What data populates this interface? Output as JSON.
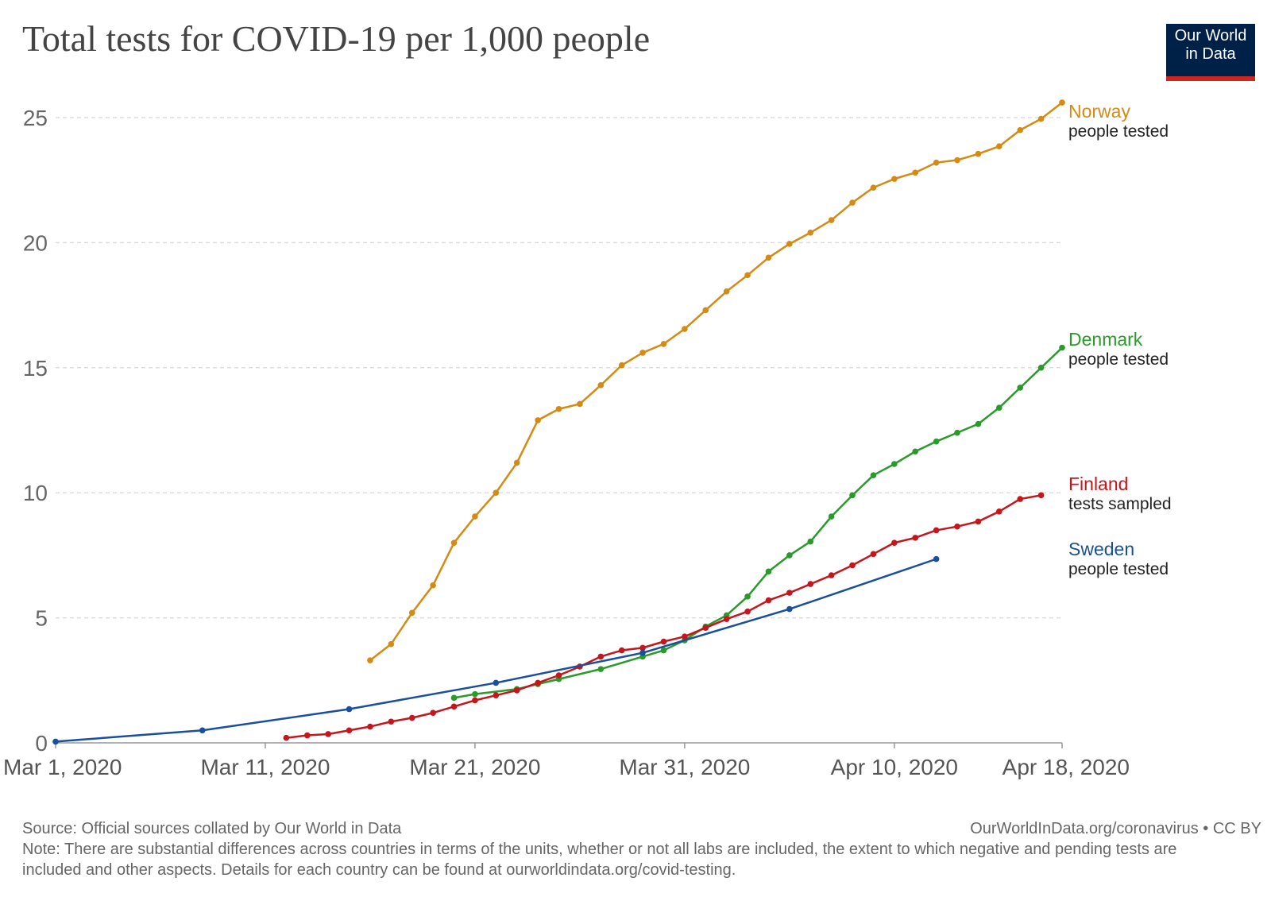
{
  "header": {
    "title": "Total tests for COVID-19 per 1,000 people",
    "logo_line1": "Our World",
    "logo_line2": "in Data"
  },
  "footer": {
    "source": "Source: Official sources collated by Our World in Data",
    "license": "OurWorldInData.org/coronavirus • CC BY",
    "note": "Note: There are substantial differences across countries in terms of the units, whether or not all labs are included, the extent to which negative and pending tests are included and other aspects. Details for each country can be found at ourworldindata.org/covid-testing."
  },
  "chart_data": {
    "type": "line",
    "title": "Total tests for COVID-19 per 1,000 people",
    "xlabel": "",
    "ylabel": "",
    "x_unit": "days",
    "xlim": [
      "2020-03-01",
      "2020-04-18"
    ],
    "ylim": [
      0,
      26
    ],
    "grid": "horizontal dashed",
    "y_ticks": [
      0,
      5,
      10,
      15,
      20,
      25
    ],
    "x_ticks": [
      {
        "date": "2020-03-01",
        "label": "Mar 1, 2020"
      },
      {
        "date": "2020-03-11",
        "label": "Mar 11, 2020"
      },
      {
        "date": "2020-03-21",
        "label": "Mar 21, 2020"
      },
      {
        "date": "2020-03-31",
        "label": "Mar 31, 2020"
      },
      {
        "date": "2020-04-10",
        "label": "Apr 10, 2020"
      },
      {
        "date": "2020-04-18",
        "label": "Apr 18, 2020"
      }
    ],
    "legend": "direct labels at right end of lines",
    "series": [
      {
        "name": "Norway",
        "unit_label": "people tested",
        "color": "#d58a14",
        "points": [
          [
            "2020-03-16",
            3.3
          ],
          [
            "2020-03-17",
            3.95
          ],
          [
            "2020-03-18",
            5.2
          ],
          [
            "2020-03-19",
            6.3
          ],
          [
            "2020-03-20",
            8.0
          ],
          [
            "2020-03-21",
            9.05
          ],
          [
            "2020-03-22",
            10.0
          ],
          [
            "2020-03-23",
            11.2
          ],
          [
            "2020-03-24",
            12.9
          ],
          [
            "2020-03-25",
            13.35
          ],
          [
            "2020-03-26",
            13.55
          ],
          [
            "2020-03-27",
            14.3
          ],
          [
            "2020-03-28",
            15.1
          ],
          [
            "2020-03-29",
            15.6
          ],
          [
            "2020-03-30",
            15.95
          ],
          [
            "2020-03-31",
            16.55
          ],
          [
            "2020-04-01",
            17.3
          ],
          [
            "2020-04-02",
            18.05
          ],
          [
            "2020-04-03",
            18.7
          ],
          [
            "2020-04-04",
            19.4
          ],
          [
            "2020-04-05",
            19.95
          ],
          [
            "2020-04-06",
            20.4
          ],
          [
            "2020-04-07",
            20.9
          ],
          [
            "2020-04-08",
            21.6
          ],
          [
            "2020-04-09",
            22.2
          ],
          [
            "2020-04-10",
            22.55
          ],
          [
            "2020-04-11",
            22.8
          ],
          [
            "2020-04-12",
            23.2
          ],
          [
            "2020-04-13",
            23.3
          ],
          [
            "2020-04-14",
            23.55
          ],
          [
            "2020-04-15",
            23.85
          ],
          [
            "2020-04-16",
            24.5
          ],
          [
            "2020-04-17",
            24.95
          ],
          [
            "2020-04-18",
            25.6
          ]
        ]
      },
      {
        "name": "Denmark",
        "unit_label": "people tested",
        "color": "#2a9a2a",
        "points": [
          [
            "2020-03-20",
            1.8
          ],
          [
            "2020-03-21",
            1.95
          ],
          [
            "2020-03-23",
            2.15
          ],
          [
            "2020-03-24",
            2.35
          ],
          [
            "2020-03-25",
            2.55
          ],
          [
            "2020-03-27",
            2.95
          ],
          [
            "2020-03-29",
            3.45
          ],
          [
            "2020-03-30",
            3.7
          ],
          [
            "2020-03-31",
            4.1
          ],
          [
            "2020-04-01",
            4.65
          ],
          [
            "2020-04-02",
            5.1
          ],
          [
            "2020-04-03",
            5.85
          ],
          [
            "2020-04-04",
            6.85
          ],
          [
            "2020-04-05",
            7.5
          ],
          [
            "2020-04-06",
            8.05
          ],
          [
            "2020-04-07",
            9.05
          ],
          [
            "2020-04-08",
            9.9
          ],
          [
            "2020-04-09",
            10.7
          ],
          [
            "2020-04-10",
            11.15
          ],
          [
            "2020-04-11",
            11.65
          ],
          [
            "2020-04-12",
            12.05
          ],
          [
            "2020-04-13",
            12.4
          ],
          [
            "2020-04-14",
            12.75
          ],
          [
            "2020-04-15",
            13.4
          ],
          [
            "2020-04-16",
            14.2
          ],
          [
            "2020-04-17",
            15.0
          ],
          [
            "2020-04-18",
            15.8
          ]
        ]
      },
      {
        "name": "Finland",
        "unit_label": "tests sampled",
        "color": "#c4161c",
        "points": [
          [
            "2020-03-12",
            0.2
          ],
          [
            "2020-03-13",
            0.3
          ],
          [
            "2020-03-14",
            0.35
          ],
          [
            "2020-03-15",
            0.5
          ],
          [
            "2020-03-16",
            0.65
          ],
          [
            "2020-03-17",
            0.85
          ],
          [
            "2020-03-18",
            1.0
          ],
          [
            "2020-03-19",
            1.2
          ],
          [
            "2020-03-20",
            1.45
          ],
          [
            "2020-03-21",
            1.7
          ],
          [
            "2020-03-22",
            1.9
          ],
          [
            "2020-03-23",
            2.1
          ],
          [
            "2020-03-24",
            2.4
          ],
          [
            "2020-03-25",
            2.7
          ],
          [
            "2020-03-26",
            3.05
          ],
          [
            "2020-03-27",
            3.45
          ],
          [
            "2020-03-28",
            3.7
          ],
          [
            "2020-03-29",
            3.8
          ],
          [
            "2020-03-30",
            4.05
          ],
          [
            "2020-03-31",
            4.25
          ],
          [
            "2020-04-01",
            4.6
          ],
          [
            "2020-04-02",
            4.95
          ],
          [
            "2020-04-03",
            5.25
          ],
          [
            "2020-04-04",
            5.7
          ],
          [
            "2020-04-05",
            6.0
          ],
          [
            "2020-04-06",
            6.35
          ],
          [
            "2020-04-07",
            6.7
          ],
          [
            "2020-04-08",
            7.1
          ],
          [
            "2020-04-09",
            7.55
          ],
          [
            "2020-04-10",
            8.0
          ],
          [
            "2020-04-11",
            8.2
          ],
          [
            "2020-04-12",
            8.5
          ],
          [
            "2020-04-13",
            8.65
          ],
          [
            "2020-04-14",
            8.85
          ],
          [
            "2020-04-15",
            9.25
          ],
          [
            "2020-04-16",
            9.75
          ],
          [
            "2020-04-17",
            9.9
          ]
        ]
      },
      {
        "name": "Sweden",
        "unit_label": "people tested",
        "color": "#1a4f9c",
        "points": [
          [
            "2020-03-01",
            0.05
          ],
          [
            "2020-03-08",
            0.5
          ],
          [
            "2020-03-15",
            1.35
          ],
          [
            "2020-03-22",
            2.4
          ],
          [
            "2020-03-29",
            3.6
          ],
          [
            "2020-04-05",
            5.35
          ],
          [
            "2020-04-12",
            7.35
          ]
        ]
      }
    ]
  }
}
